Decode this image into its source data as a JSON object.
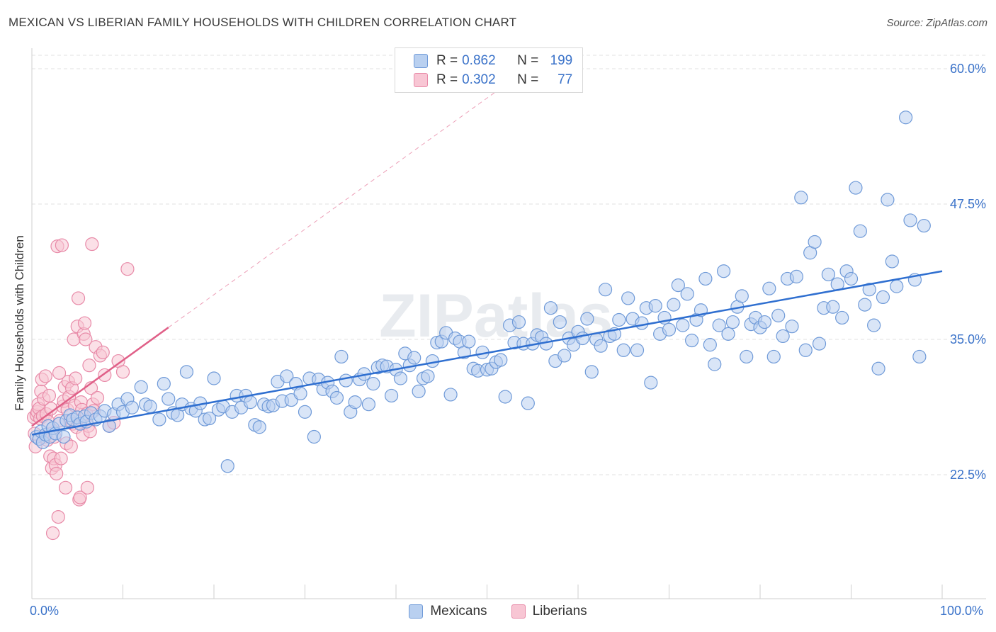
{
  "header": {
    "title": "MEXICAN VS LIBERIAN FAMILY HOUSEHOLDS WITH CHILDREN CORRELATION CHART",
    "source": "Source: ZipAtlas.com"
  },
  "legend": {
    "mexicans": {
      "r_label": "R = ",
      "r_value": "0.862",
      "n_label": "N = ",
      "n_value": "199"
    },
    "liberians": {
      "r_label": "R = ",
      "r_value": "0.302",
      "n_label": "N = ",
      "n_value": "77"
    }
  },
  "watermark": "ZIPatlas",
  "colors": {
    "mexicans_fill": "#b9d0f0",
    "mexicans_stroke": "#6f9ad8",
    "mexicans_line": "#2f6fd0",
    "liberians_fill": "#f8c6d4",
    "liberians_stroke": "#e88aa8",
    "liberians_line": "#e06088",
    "axis_text": "#3a72c9",
    "grid": "#e2e2e2"
  },
  "chart_data": {
    "type": "scatter",
    "title": "MEXICAN VS LIBERIAN FAMILY HOUSEHOLDS WITH CHILDREN CORRELATION CHART",
    "xlabel": "",
    "ylabel": "Family Households with Children",
    "xlim": [
      0,
      100
    ],
    "ylim": [
      10,
      62.5
    ],
    "x_tick_labels": [
      "0.0%",
      "100.0%"
    ],
    "y_ticks": [
      22.5,
      35.0,
      47.5,
      60.0
    ],
    "y_tick_labels": [
      "22.5%",
      "35.0%",
      "47.5%",
      "60.0%"
    ],
    "legend_position": "top-center",
    "series": [
      {
        "name": "Mexicans",
        "R": 0.862,
        "N": 199,
        "trend": {
          "x": [
            0,
            100
          ],
          "y": [
            26.2,
            41.3
          ],
          "style": "solid"
        },
        "points": [
          [
            0.5,
            26.0
          ],
          [
            0.8,
            25.8
          ],
          [
            1.0,
            26.5
          ],
          [
            1.2,
            25.5
          ],
          [
            1.5,
            26.2
          ],
          [
            1.8,
            27.0
          ],
          [
            2.0,
            26.0
          ],
          [
            2.3,
            26.8
          ],
          [
            2.6,
            26.3
          ],
          [
            3.0,
            27.2
          ],
          [
            3.5,
            26.0
          ],
          [
            3.8,
            27.5
          ],
          [
            4.2,
            28.0
          ],
          [
            4.5,
            27.6
          ],
          [
            5.0,
            27.8
          ],
          [
            5.3,
            27.2
          ],
          [
            5.8,
            27.9
          ],
          [
            6.0,
            27.4
          ],
          [
            6.5,
            28.2
          ],
          [
            7.0,
            27.6
          ],
          [
            7.5,
            27.9
          ],
          [
            8.0,
            28.4
          ],
          [
            8.5,
            27.0
          ],
          [
            9.0,
            28.1
          ],
          [
            9.5,
            29.0
          ],
          [
            10.0,
            28.3
          ],
          [
            10.5,
            29.5
          ],
          [
            11.0,
            28.7
          ],
          [
            12.0,
            30.6
          ],
          [
            12.5,
            29.0
          ],
          [
            13.0,
            28.8
          ],
          [
            14.0,
            27.6
          ],
          [
            14.5,
            30.9
          ],
          [
            15.0,
            29.5
          ],
          [
            15.5,
            28.2
          ],
          [
            16.0,
            28.0
          ],
          [
            16.5,
            29.0
          ],
          [
            17.0,
            32.0
          ],
          [
            17.5,
            28.6
          ],
          [
            18.0,
            28.4
          ],
          [
            18.5,
            29.1
          ],
          [
            19.0,
            27.6
          ],
          [
            19.5,
            27.7
          ],
          [
            20.0,
            31.4
          ],
          [
            20.5,
            28.5
          ],
          [
            21.0,
            28.8
          ],
          [
            21.5,
            23.3
          ],
          [
            22.0,
            28.3
          ],
          [
            22.5,
            29.8
          ],
          [
            23.0,
            28.7
          ],
          [
            23.5,
            29.8
          ],
          [
            24.0,
            29.2
          ],
          [
            24.5,
            27.1
          ],
          [
            25.0,
            26.9
          ],
          [
            25.5,
            29.0
          ],
          [
            26.0,
            28.8
          ],
          [
            26.5,
            28.9
          ],
          [
            27.0,
            31.1
          ],
          [
            27.5,
            29.3
          ],
          [
            28.0,
            31.6
          ],
          [
            28.5,
            29.4
          ],
          [
            29.0,
            30.9
          ],
          [
            29.5,
            30.0
          ],
          [
            30.0,
            28.3
          ],
          [
            30.5,
            31.4
          ],
          [
            31.0,
            26.0
          ],
          [
            31.5,
            31.3
          ],
          [
            32.0,
            30.4
          ],
          [
            32.5,
            31.0
          ],
          [
            33.0,
            30.2
          ],
          [
            33.5,
            29.6
          ],
          [
            34.0,
            33.4
          ],
          [
            34.5,
            31.2
          ],
          [
            35.0,
            28.3
          ],
          [
            35.5,
            29.2
          ],
          [
            36.0,
            31.3
          ],
          [
            36.5,
            31.8
          ],
          [
            37.0,
            29.0
          ],
          [
            37.5,
            30.9
          ],
          [
            38.0,
            32.4
          ],
          [
            38.5,
            32.6
          ],
          [
            39.0,
            32.5
          ],
          [
            39.5,
            29.8
          ],
          [
            40.0,
            32.2
          ],
          [
            40.5,
            31.4
          ],
          [
            41.0,
            33.7
          ],
          [
            41.5,
            32.6
          ],
          [
            42.0,
            33.3
          ],
          [
            42.5,
            30.2
          ],
          [
            43.0,
            31.4
          ],
          [
            43.5,
            31.6
          ],
          [
            44.0,
            33.0
          ],
          [
            44.5,
            34.7
          ],
          [
            45.0,
            34.8
          ],
          [
            45.5,
            35.6
          ],
          [
            46.0,
            29.9
          ],
          [
            46.5,
            35.1
          ],
          [
            47.0,
            34.8
          ],
          [
            47.5,
            33.8
          ],
          [
            48.0,
            34.8
          ],
          [
            48.5,
            32.3
          ],
          [
            49.0,
            32.1
          ],
          [
            49.5,
            33.8
          ],
          [
            50.0,
            32.2
          ],
          [
            50.5,
            32.3
          ],
          [
            51.0,
            32.9
          ],
          [
            51.5,
            33.1
          ],
          [
            52.0,
            29.7
          ],
          [
            52.5,
            36.3
          ],
          [
            53.0,
            34.7
          ],
          [
            53.5,
            36.6
          ],
          [
            54.0,
            34.6
          ],
          [
            54.5,
            29.1
          ],
          [
            55.0,
            34.6
          ],
          [
            55.5,
            35.4
          ],
          [
            56.0,
            35.2
          ],
          [
            56.5,
            34.6
          ],
          [
            57.0,
            37.9
          ],
          [
            57.5,
            33.0
          ],
          [
            58.0,
            36.6
          ],
          [
            58.5,
            33.5
          ],
          [
            59.0,
            35.1
          ],
          [
            59.5,
            34.5
          ],
          [
            60.0,
            35.7
          ],
          [
            60.5,
            35.1
          ],
          [
            61.0,
            36.9
          ],
          [
            61.5,
            32.0
          ],
          [
            62.0,
            35.0
          ],
          [
            62.5,
            34.4
          ],
          [
            63.0,
            39.6
          ],
          [
            63.5,
            35.3
          ],
          [
            64.0,
            35.5
          ],
          [
            64.5,
            36.8
          ],
          [
            65.0,
            34.0
          ],
          [
            65.5,
            38.8
          ],
          [
            66.0,
            36.9
          ],
          [
            66.5,
            34.0
          ],
          [
            67.0,
            36.5
          ],
          [
            67.5,
            37.9
          ],
          [
            68.0,
            31.0
          ],
          [
            68.5,
            38.1
          ],
          [
            69.0,
            35.5
          ],
          [
            69.5,
            37.0
          ],
          [
            70.0,
            35.9
          ],
          [
            70.5,
            38.2
          ],
          [
            71.0,
            40.0
          ],
          [
            71.5,
            36.3
          ],
          [
            72.0,
            39.2
          ],
          [
            72.5,
            34.9
          ],
          [
            73.0,
            36.8
          ],
          [
            73.5,
            37.7
          ],
          [
            74.0,
            40.6
          ],
          [
            74.5,
            34.5
          ],
          [
            75.0,
            32.7
          ],
          [
            75.5,
            36.3
          ],
          [
            76.0,
            41.3
          ],
          [
            76.5,
            35.5
          ],
          [
            77.0,
            36.6
          ],
          [
            77.5,
            38.0
          ],
          [
            78.0,
            39.0
          ],
          [
            78.5,
            33.4
          ],
          [
            79.0,
            36.4
          ],
          [
            79.5,
            37.0
          ],
          [
            80.0,
            36.1
          ],
          [
            80.5,
            36.6
          ],
          [
            81.0,
            39.7
          ],
          [
            81.5,
            33.4
          ],
          [
            82.0,
            37.2
          ],
          [
            82.5,
            35.3
          ],
          [
            83.0,
            40.6
          ],
          [
            83.5,
            36.2
          ],
          [
            84.0,
            40.8
          ],
          [
            84.5,
            48.1
          ],
          [
            85.0,
            34.0
          ],
          [
            85.5,
            43.0
          ],
          [
            86.0,
            44.0
          ],
          [
            86.5,
            34.6
          ],
          [
            87.0,
            37.9
          ],
          [
            87.5,
            41.0
          ],
          [
            88.0,
            38.0
          ],
          [
            88.5,
            40.1
          ],
          [
            89.0,
            37.0
          ],
          [
            89.5,
            41.3
          ],
          [
            90.0,
            40.6
          ],
          [
            90.5,
            49.0
          ],
          [
            91.0,
            45.0
          ],
          [
            91.5,
            38.2
          ],
          [
            92.0,
            39.6
          ],
          [
            92.5,
            36.3
          ],
          [
            93.0,
            32.3
          ],
          [
            93.5,
            38.9
          ],
          [
            94.0,
            47.9
          ],
          [
            94.5,
            42.2
          ],
          [
            95.0,
            39.9
          ],
          [
            96.0,
            55.5
          ],
          [
            96.5,
            46.0
          ],
          [
            97.0,
            40.5
          ],
          [
            97.5,
            33.4
          ],
          [
            98.0,
            45.5
          ]
        ]
      },
      {
        "name": "Liberians",
        "R": 0.302,
        "N": 77,
        "trend": {
          "x": [
            0,
            15
          ],
          "y": [
            27.0,
            36.1
          ],
          "style": "solid",
          "extension": {
            "x": [
              15,
              52
            ],
            "y": [
              36.1,
              58.5
            ],
            "style": "dashed"
          }
        },
        "points": [
          [
            0.2,
            27.8
          ],
          [
            0.3,
            26.3
          ],
          [
            0.4,
            25.1
          ],
          [
            0.5,
            28.0
          ],
          [
            0.6,
            28.3
          ],
          [
            0.7,
            29.0
          ],
          [
            0.8,
            28.6
          ],
          [
            0.9,
            27.7
          ],
          [
            1.0,
            30.2
          ],
          [
            1.1,
            31.3
          ],
          [
            1.2,
            27.9
          ],
          [
            1.3,
            29.5
          ],
          [
            1.4,
            26.0
          ],
          [
            1.5,
            31.6
          ],
          [
            1.6,
            28.1
          ],
          [
            1.7,
            25.7
          ],
          [
            1.8,
            27.4
          ],
          [
            1.9,
            29.8
          ],
          [
            2.0,
            24.2
          ],
          [
            2.1,
            28.6
          ],
          [
            2.2,
            23.1
          ],
          [
            2.3,
            17.1
          ],
          [
            2.4,
            24.0
          ],
          [
            2.5,
            26.0
          ],
          [
            2.6,
            23.4
          ],
          [
            2.7,
            22.6
          ],
          [
            2.8,
            43.6
          ],
          [
            2.9,
            18.6
          ],
          [
            3.0,
            31.9
          ],
          [
            3.1,
            27.5
          ],
          [
            3.2,
            24.0
          ],
          [
            3.3,
            43.7
          ],
          [
            3.4,
            28.8
          ],
          [
            3.5,
            29.3
          ],
          [
            3.6,
            30.6
          ],
          [
            3.7,
            21.3
          ],
          [
            3.8,
            25.4
          ],
          [
            3.9,
            28.5
          ],
          [
            4.0,
            31.1
          ],
          [
            4.1,
            29.7
          ],
          [
            4.2,
            27.5
          ],
          [
            4.3,
            25.1
          ],
          [
            4.4,
            30.5
          ],
          [
            4.5,
            27.2
          ],
          [
            4.6,
            35.0
          ],
          [
            4.7,
            28.9
          ],
          [
            4.8,
            31.4
          ],
          [
            4.9,
            26.9
          ],
          [
            5.0,
            36.2
          ],
          [
            5.1,
            38.8
          ],
          [
            5.2,
            20.2
          ],
          [
            5.3,
            20.4
          ],
          [
            5.4,
            29.2
          ],
          [
            5.5,
            28.5
          ],
          [
            5.6,
            26.2
          ],
          [
            5.7,
            35.5
          ],
          [
            5.8,
            36.5
          ],
          [
            5.9,
            35.0
          ],
          [
            6.0,
            28.1
          ],
          [
            6.1,
            21.3
          ],
          [
            6.2,
            27.0
          ],
          [
            6.3,
            32.6
          ],
          [
            6.4,
            26.5
          ],
          [
            6.5,
            30.5
          ],
          [
            6.6,
            43.8
          ],
          [
            6.7,
            29.0
          ],
          [
            6.8,
            28.4
          ],
          [
            7.0,
            34.3
          ],
          [
            7.2,
            29.6
          ],
          [
            7.5,
            33.5
          ],
          [
            7.8,
            33.8
          ],
          [
            8.0,
            31.7
          ],
          [
            8.5,
            27.0
          ],
          [
            9.0,
            27.3
          ],
          [
            9.5,
            33.0
          ],
          [
            10.0,
            32.0
          ],
          [
            10.5,
            41.5
          ]
        ]
      }
    ]
  },
  "bottom_legend": [
    "Mexicans",
    "Liberians"
  ],
  "axis": {
    "x_min_label": "0.0%",
    "x_max_label": "100.0%",
    "y_label": "Family Households with Children"
  }
}
